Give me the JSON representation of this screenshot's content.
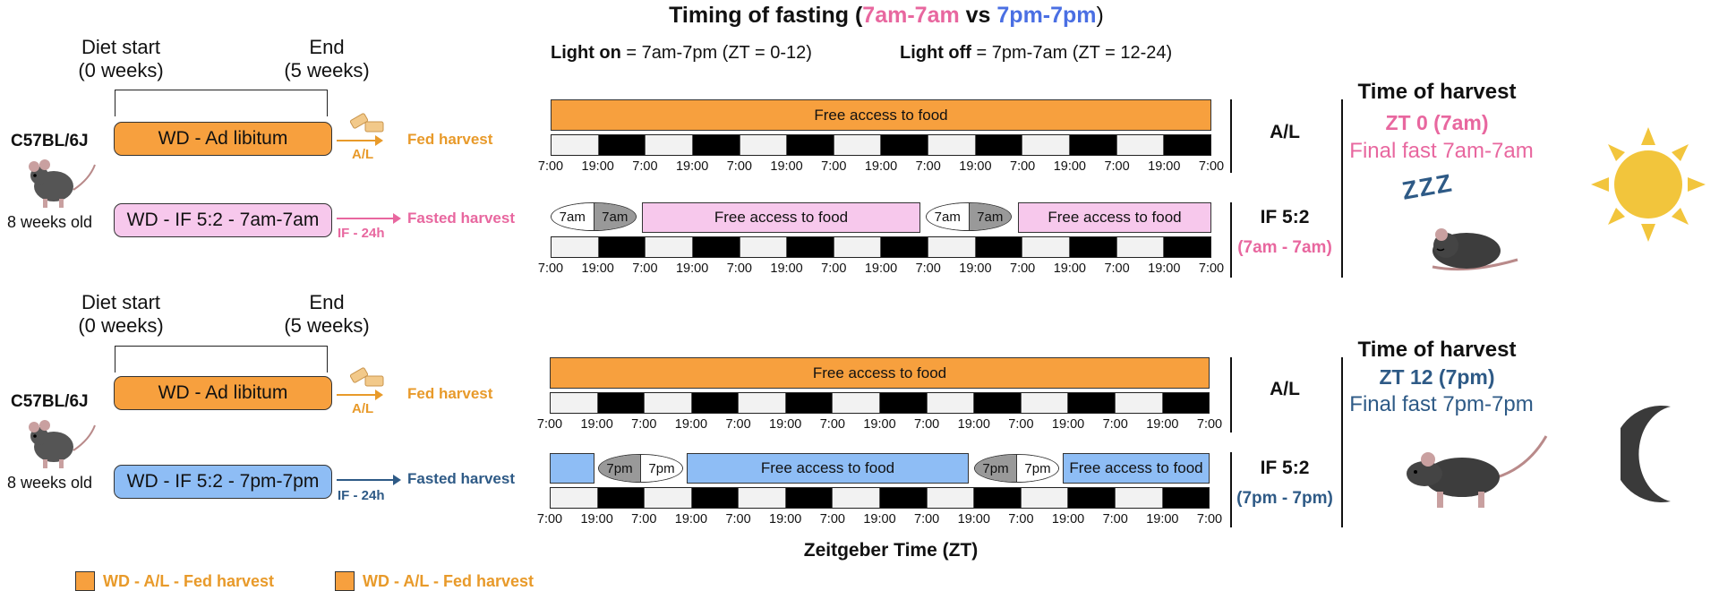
{
  "title": {
    "prefix": "Timing of fasting (",
    "red": "7am-7am",
    "vs": " vs ",
    "blue": "7pm-7pm",
    "suffix": ")"
  },
  "light": {
    "on_label": "Light on",
    "on_value": " = 7am-7pm (ZT = 0-12)",
    "off_label": "Light off",
    "off_value": " = 7pm-7am (ZT = 12-24)"
  },
  "timeline": {
    "diet_start": "Diet start",
    "diet_start_sub": "(0 weeks)",
    "end": "End",
    "end_sub": "(5 weeks)"
  },
  "mouse": {
    "strain": "C57BL/6J",
    "age": "8 weeks old"
  },
  "diet": {
    "al": "WD - Ad libitum",
    "if_am": "WD - IF 5:2 - 7am-7am",
    "if_pm": "WD - IF 5:2 - 7pm-7pm",
    "al_tag": "A/L",
    "fed_harvest": "Fed harvest",
    "fasted_harvest": "Fasted harvest",
    "if_tag": "IF - 24h"
  },
  "schedule": {
    "free_access": "Free access to food",
    "ticks": [
      "7:00",
      "19:00",
      "7:00",
      "19:00",
      "7:00",
      "19:00",
      "7:00",
      "19:00",
      "7:00",
      "19:00",
      "7:00",
      "19:00",
      "7:00",
      "19:00",
      "7:00"
    ],
    "lens_am": [
      "7am",
      "7am"
    ],
    "lens_pm": [
      "7pm",
      "7pm"
    ],
    "xlabel": "Zeitgeber Time (ZT)"
  },
  "groups": {
    "al": "A/L",
    "if": "IF 5:2",
    "if_am_sub": "(7am - 7am)",
    "if_pm_sub": "(7pm - 7pm)"
  },
  "harvest": {
    "title": "Time of harvest",
    "am_time": "ZT 0 (7am)",
    "am_fast": "Final fast 7am-7am",
    "pm_time": "ZT 12 (7pm)",
    "pm_fast": "Final fast 7pm-7pm",
    "zzz": "ZZZ"
  },
  "legend": [
    "WD - A/L - Fed harvest",
    "WD - A/L - Fed harvest"
  ],
  "colors": {
    "orange": "#F7A03E",
    "pink": "#F7C8EC",
    "blue": "#8EBDF5",
    "pink_text": "#E8679F",
    "blue_text": "#4A6FE3",
    "navy_text": "#2E5A86",
    "orange_text": "#E89A2A"
  }
}
